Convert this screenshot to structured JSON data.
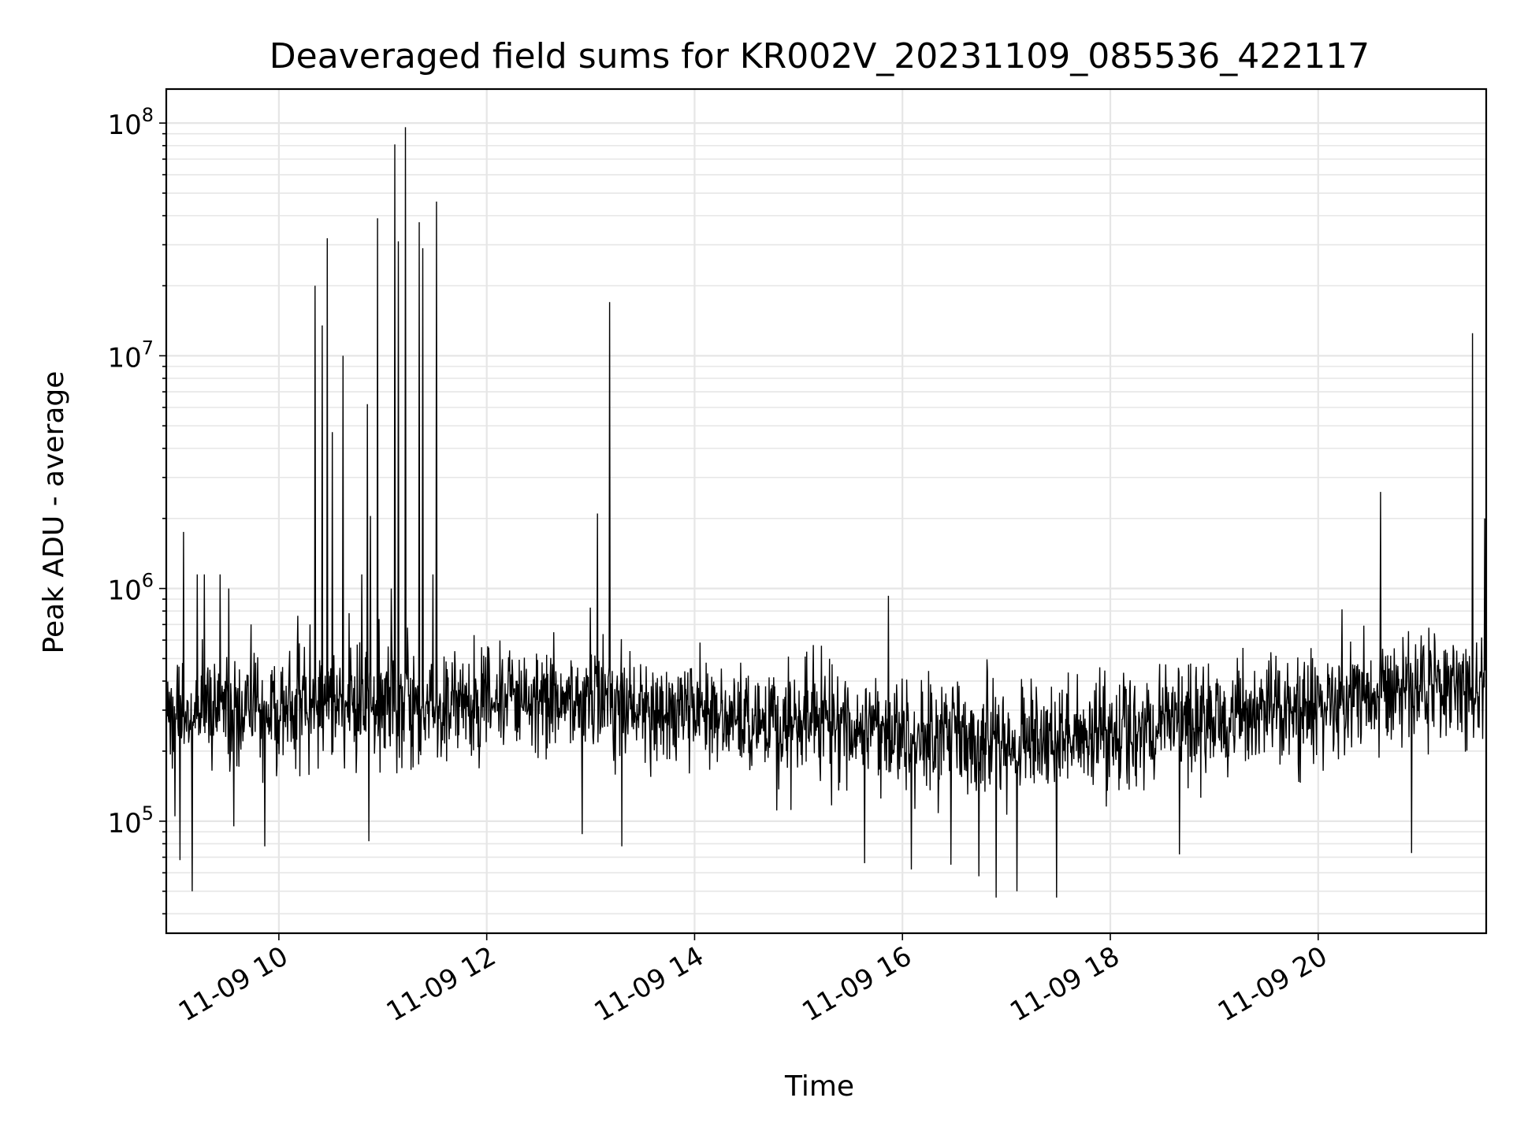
{
  "chart_data": {
    "type": "line",
    "title": "Deaveraged field sums for KR002V_20231109_085536_422117",
    "xlabel": "Time",
    "ylabel": "Peak ADU - average",
    "yscale": "log",
    "ylim": [
      33000,
      140000000
    ],
    "xlim": [
      "2023-11-09 08:55",
      "2023-11-09 21:37"
    ],
    "x_ticks": [
      {
        "t": "2023-11-09 10:00",
        "label": "11-09 10"
      },
      {
        "t": "2023-11-09 12:00",
        "label": "11-09 12"
      },
      {
        "t": "2023-11-09 14:00",
        "label": "11-09 14"
      },
      {
        "t": "2023-11-09 16:00",
        "label": "11-09 16"
      },
      {
        "t": "2023-11-09 18:00",
        "label": "11-09 18"
      },
      {
        "t": "2023-11-09 20:00",
        "label": "11-09 20"
      }
    ],
    "y_ticks": [
      {
        "value": 100000,
        "base": "10",
        "exp": "5"
      },
      {
        "value": 1000000,
        "base": "10",
        "exp": "6"
      },
      {
        "value": 10000000,
        "base": "10",
        "exp": "7"
      },
      {
        "value": 100000000,
        "base": "10",
        "exp": "8"
      }
    ],
    "grid": true,
    "line_color": "#000000",
    "grid_color": "#e6e6e6",
    "baseline_trend": [
      {
        "t": "2023-11-09 08:55",
        "value": 300000
      },
      {
        "t": "2023-11-09 11:00",
        "value": 320000
      },
      {
        "t": "2023-11-09 13:00",
        "value": 330000
      },
      {
        "t": "2023-11-09 15:00",
        "value": 260000
      },
      {
        "t": "2023-11-09 17:00",
        "value": 220000
      },
      {
        "t": "2023-11-09 18:30",
        "value": 260000
      },
      {
        "t": "2023-11-09 20:00",
        "value": 320000
      },
      {
        "t": "2023-11-09 21:37",
        "value": 400000
      }
    ],
    "spikes": [
      {
        "t": "2023-11-09 09:05",
        "value": 1750000
      },
      {
        "t": "2023-11-09 09:13",
        "value": 1150000
      },
      {
        "t": "2023-11-09 09:17",
        "value": 1150000
      },
      {
        "t": "2023-11-09 09:26",
        "value": 1150000
      },
      {
        "t": "2023-11-09 09:31",
        "value": 1000000
      },
      {
        "t": "2023-11-09 09:44",
        "value": 700000
      },
      {
        "t": "2023-11-09 10:18",
        "value": 700000
      },
      {
        "t": "2023-11-09 10:21",
        "value": 20000000
      },
      {
        "t": "2023-11-09 10:25",
        "value": 13500000
      },
      {
        "t": "2023-11-09 10:28",
        "value": 32000000
      },
      {
        "t": "2023-11-09 10:31",
        "value": 4700000
      },
      {
        "t": "2023-11-09 10:37",
        "value": 10000000
      },
      {
        "t": "2023-11-09 10:48",
        "value": 1150000
      },
      {
        "t": "2023-11-09 10:51",
        "value": 6200000
      },
      {
        "t": "2023-11-09 10:53",
        "value": 2050000
      },
      {
        "t": "2023-11-09 10:57",
        "value": 39000000
      },
      {
        "t": "2023-11-09 11:05",
        "value": 1000000
      },
      {
        "t": "2023-11-09 11:07",
        "value": 81000000
      },
      {
        "t": "2023-11-09 11:09",
        "value": 31000000
      },
      {
        "t": "2023-11-09 11:13",
        "value": 96000000
      },
      {
        "t": "2023-11-09 11:21",
        "value": 37500000
      },
      {
        "t": "2023-11-09 11:23",
        "value": 29000000
      },
      {
        "t": "2023-11-09 11:29",
        "value": 1150000
      },
      {
        "t": "2023-11-09 11:31",
        "value": 46000000
      },
      {
        "t": "2023-11-09 13:04",
        "value": 2100000
      },
      {
        "t": "2023-11-09 13:11",
        "value": 17000000
      },
      {
        "t": "2023-11-09 15:52",
        "value": 930000
      },
      {
        "t": "2023-11-09 20:36",
        "value": 2600000
      },
      {
        "t": "2023-11-09 21:29",
        "value": 12500000
      },
      {
        "t": "2023-11-09 21:36",
        "value": 2000000
      }
    ],
    "dips": [
      {
        "t": "2023-11-09 09:00",
        "value": 105000
      },
      {
        "t": "2023-11-09 09:03",
        "value": 68000
      },
      {
        "t": "2023-11-09 09:10",
        "value": 50000
      },
      {
        "t": "2023-11-09 09:34",
        "value": 95000
      },
      {
        "t": "2023-11-09 09:52",
        "value": 78000
      },
      {
        "t": "2023-11-09 10:52",
        "value": 82000
      },
      {
        "t": "2023-11-09 12:55",
        "value": 88000
      },
      {
        "t": "2023-11-09 13:18",
        "value": 78000
      },
      {
        "t": "2023-11-09 15:38",
        "value": 66000
      },
      {
        "t": "2023-11-09 16:05",
        "value": 62000
      },
      {
        "t": "2023-11-09 16:28",
        "value": 65000
      },
      {
        "t": "2023-11-09 16:44",
        "value": 58000
      },
      {
        "t": "2023-11-09 16:54",
        "value": 47000
      },
      {
        "t": "2023-11-09 17:06",
        "value": 50000
      },
      {
        "t": "2023-11-09 17:29",
        "value": 47000
      },
      {
        "t": "2023-11-09 18:40",
        "value": 72000
      },
      {
        "t": "2023-11-09 20:54",
        "value": 73000
      }
    ]
  }
}
